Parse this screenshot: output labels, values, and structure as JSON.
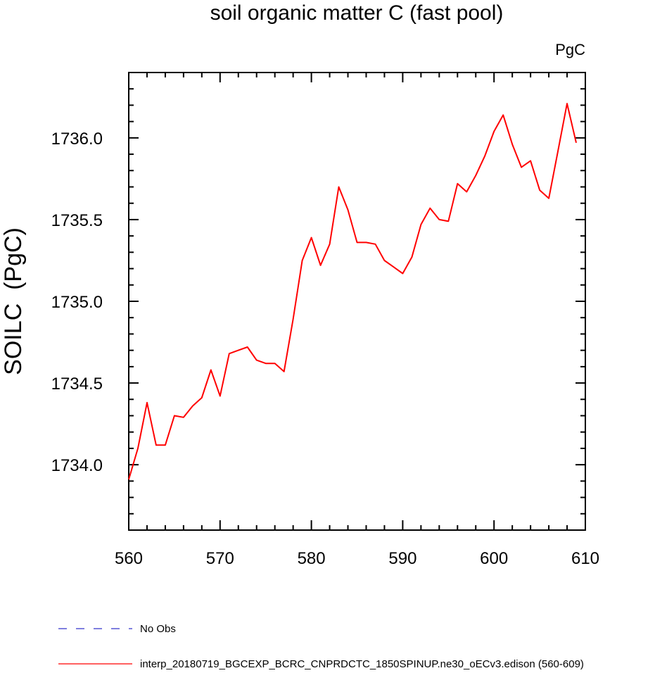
{
  "chart_data": {
    "type": "line",
    "title": "soil organic matter C (fast pool)",
    "units_label": "PgC",
    "xlabel": "",
    "ylabel": "SOILC  (PgC)",
    "xlim": [
      560,
      610
    ],
    "ylim": [
      1733.6,
      1736.4
    ],
    "x_ticks": [
      560,
      570,
      580,
      590,
      600,
      610
    ],
    "x_tick_labels": [
      "560",
      "570",
      "580",
      "590",
      "600",
      "610"
    ],
    "y_ticks": [
      1734.0,
      1734.5,
      1735.0,
      1735.5,
      1736.0
    ],
    "y_tick_labels": [
      "1734.0",
      "1734.5",
      "1735.0",
      "1735.5",
      "1736.0"
    ],
    "x_minor_step": 2,
    "y_minor_step": 0.1,
    "grid": false,
    "legend_position": "bottom-left",
    "legend": [
      {
        "label": "No Obs",
        "color": "#3333cc",
        "dash": true
      },
      {
        "label": "interp_20180719_BGCEXP_BCRC_CNPRDCTC_1850SPINUP.ne30_oECv3.edison (560-609)",
        "color": "#ff0000",
        "dash": false
      }
    ],
    "series": [
      {
        "name": "interp_20180719_BGCEXP_BCRC_CNPRDCTC_1850SPINUP.ne30_oECv3.edison (560-609)",
        "color": "#ff0000",
        "x": [
          560,
          561,
          562,
          563,
          564,
          565,
          566,
          567,
          568,
          569,
          570,
          571,
          572,
          573,
          574,
          575,
          576,
          577,
          578,
          579,
          580,
          581,
          582,
          583,
          584,
          585,
          586,
          587,
          588,
          589,
          590,
          591,
          592,
          593,
          594,
          595,
          596,
          597,
          598,
          599,
          600,
          601,
          602,
          603,
          604,
          605,
          606,
          607,
          608,
          609
        ],
        "values": [
          1733.91,
          1734.1,
          1734.38,
          1734.12,
          1734.12,
          1734.3,
          1734.29,
          1734.36,
          1734.41,
          1734.58,
          1734.42,
          1734.68,
          1734.7,
          1734.72,
          1734.64,
          1734.62,
          1734.62,
          1734.57,
          1734.89,
          1735.25,
          1735.39,
          1735.22,
          1735.35,
          1735.7,
          1735.56,
          1735.36,
          1735.36,
          1735.35,
          1735.25,
          1735.21,
          1735.17,
          1735.27,
          1735.47,
          1735.57,
          1735.5,
          1735.49,
          1735.72,
          1735.67,
          1735.77,
          1735.89,
          1736.04,
          1736.14,
          1735.96,
          1735.82,
          1735.86,
          1735.68,
          1735.63,
          1735.92,
          1736.21,
          1735.97
        ]
      }
    ]
  }
}
